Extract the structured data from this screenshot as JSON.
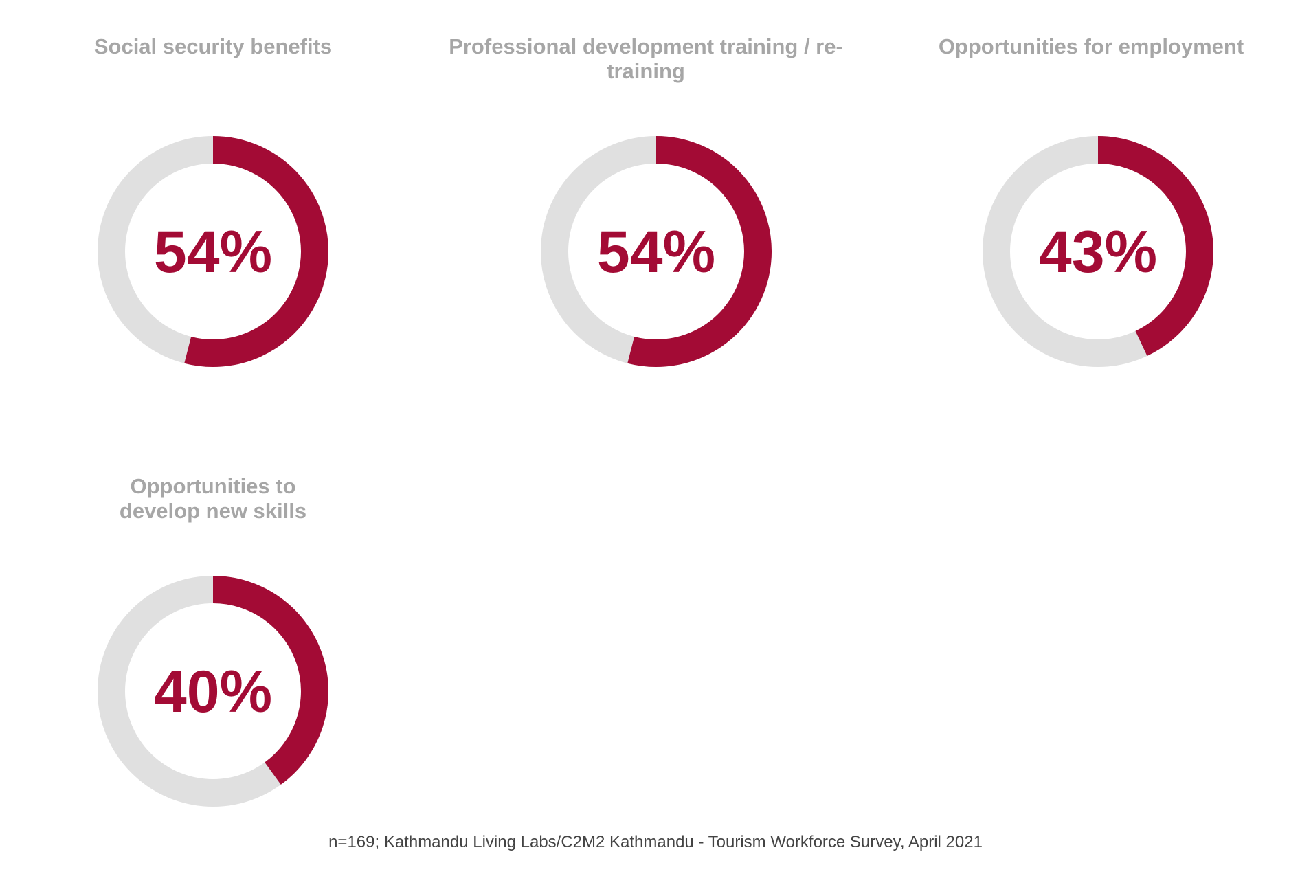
{
  "colors": {
    "accent": "#a30b35",
    "track": "#e0e0e0",
    "title": "#a6a6a6",
    "source": "#444444"
  },
  "chart_data": [
    {
      "type": "pie",
      "title": "Social security benefits",
      "values": [
        54,
        46
      ],
      "label": "54%"
    },
    {
      "type": "pie",
      "title": "Professional development training / re-training",
      "values": [
        54,
        46
      ],
      "label": "54%"
    },
    {
      "type": "pie",
      "title": "Opportunities for employment",
      "values": [
        43,
        57
      ],
      "label": "43%"
    },
    {
      "type": "pie",
      "title": "Opportunities to develop new skills",
      "values": [
        40,
        60
      ],
      "label": "40%"
    }
  ],
  "source": "n=169; Kathmandu Living Labs/C2M2 Kathmandu - Tourism Workforce Survey, April 2021"
}
